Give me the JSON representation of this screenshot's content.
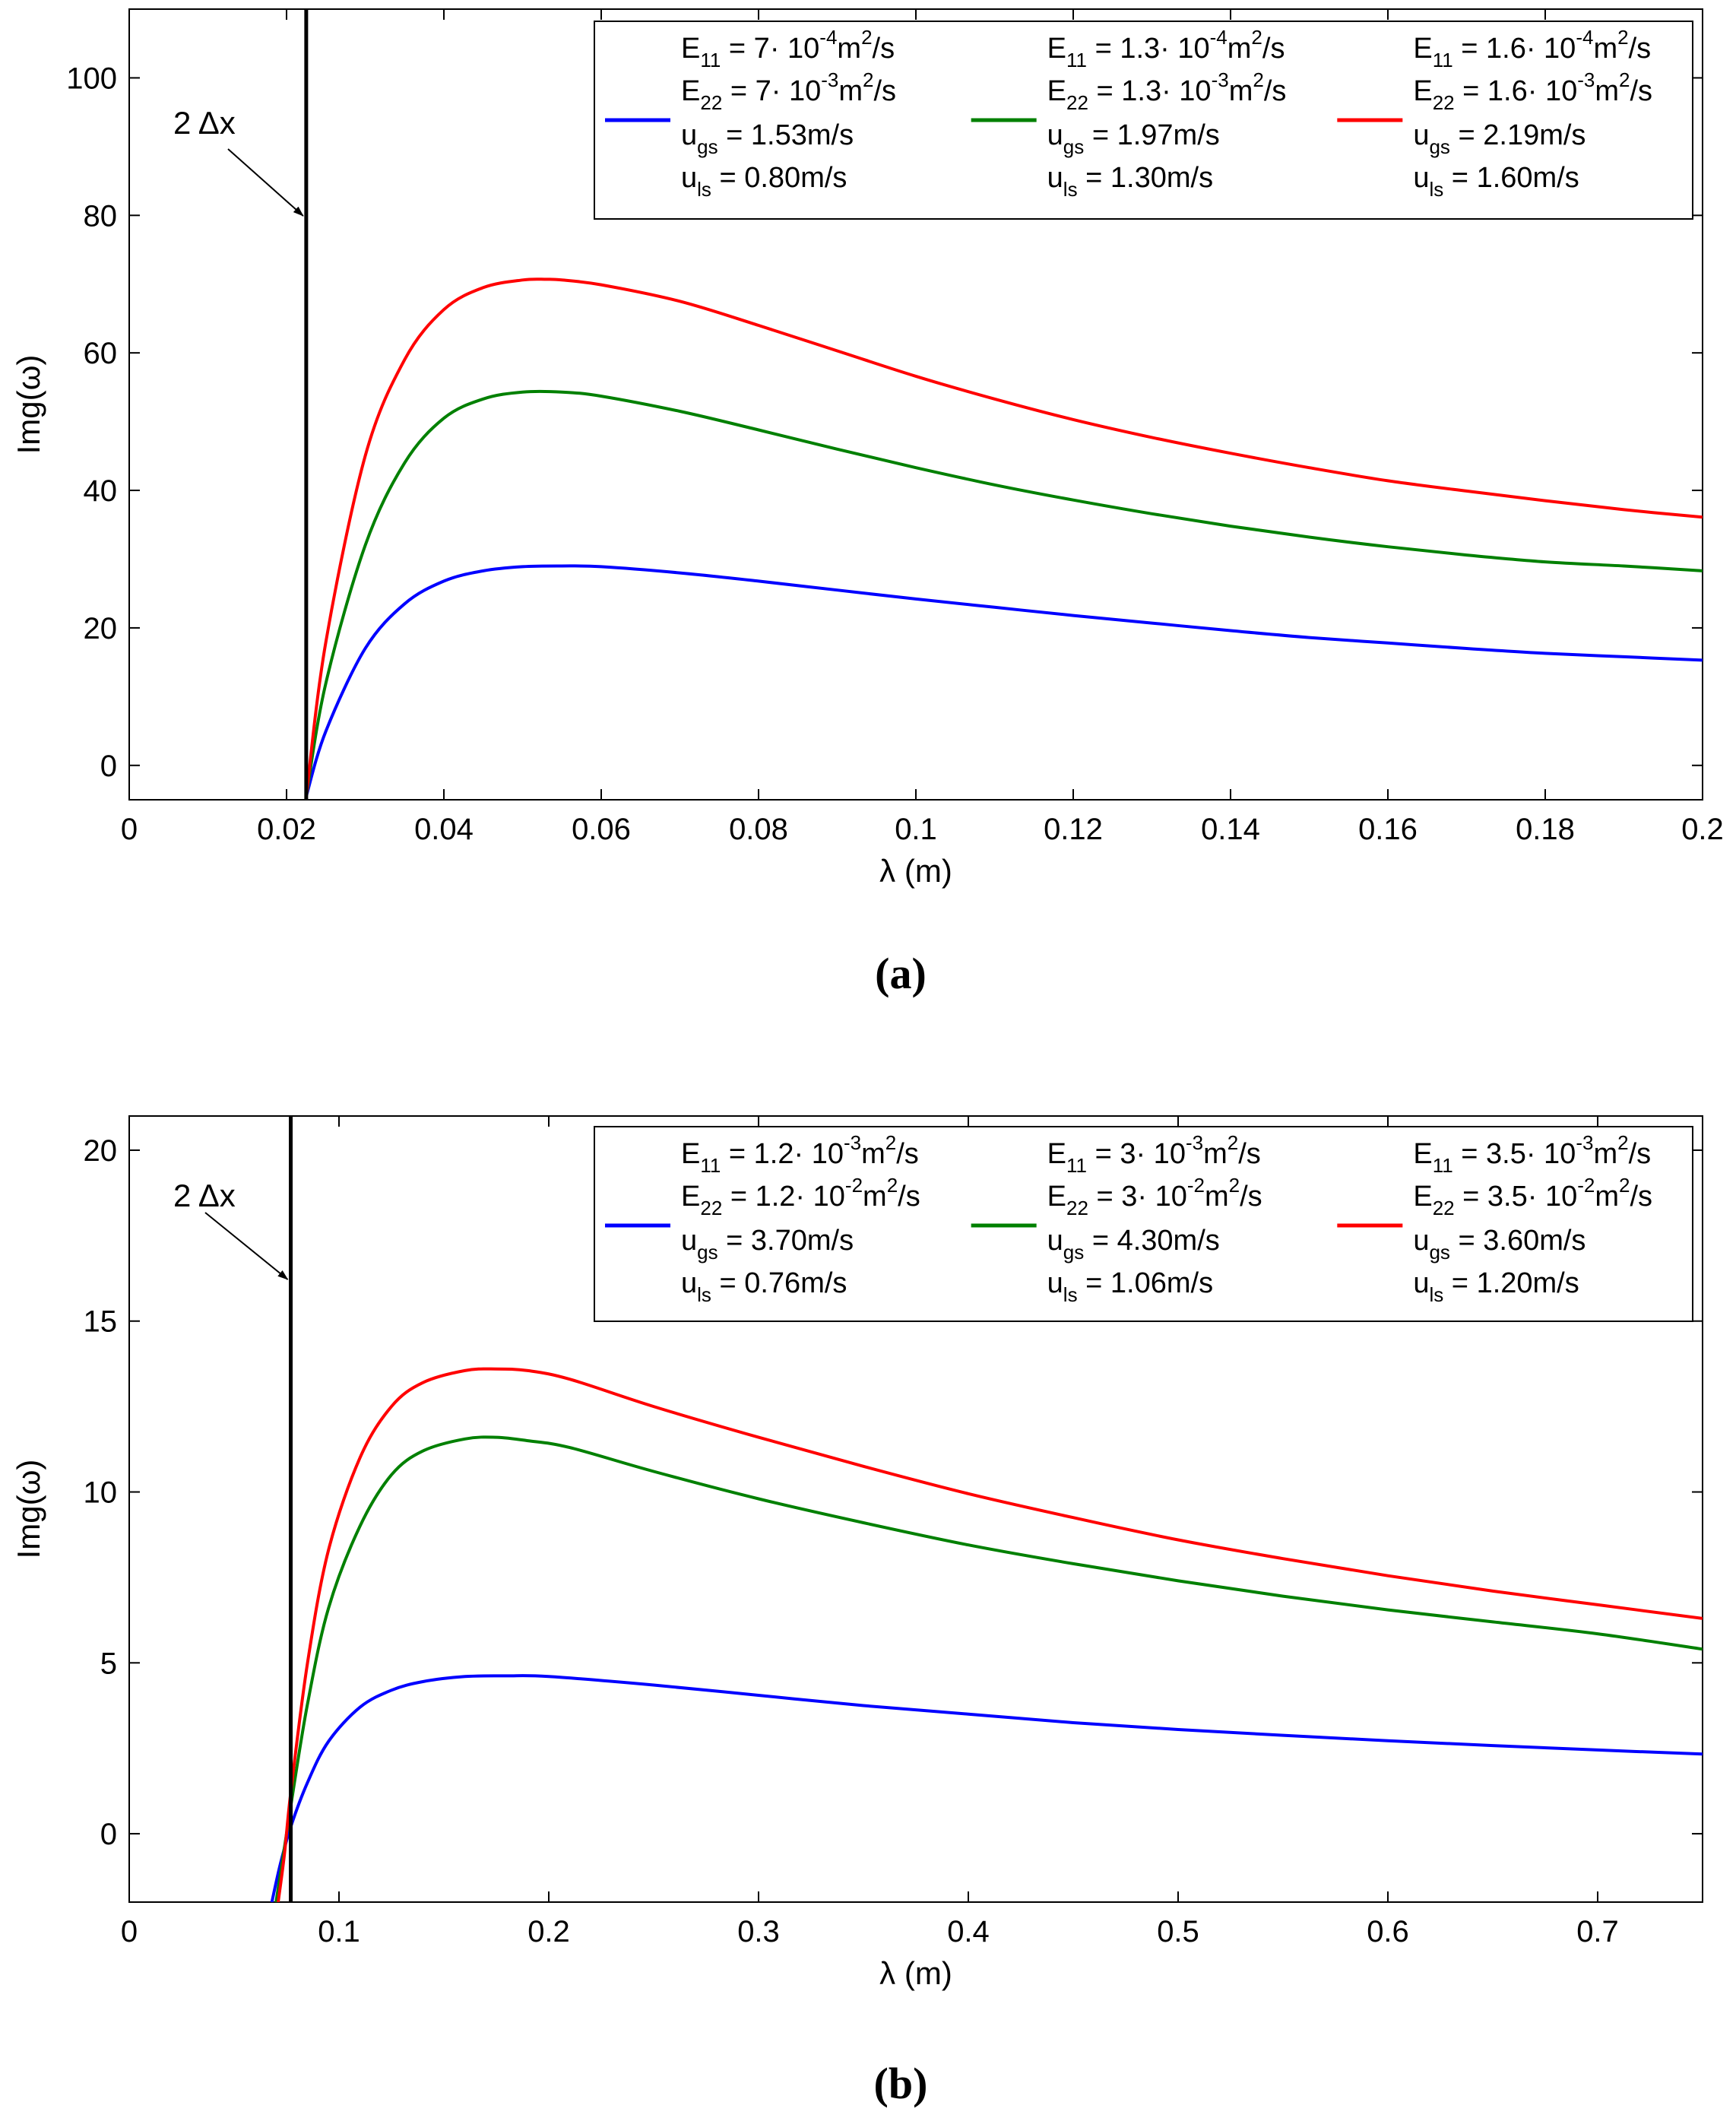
{
  "chart_data": [
    {
      "type": "line",
      "panel": "a",
      "panel_label": "(a)",
      "title": "",
      "xlabel": "λ  (m)",
      "ylabel": "Img(ω)",
      "xlim": [
        0,
        0.2
      ],
      "ylim": [
        -5,
        110
      ],
      "xticks": [
        "0",
        "0.02",
        "0.04",
        "0.06",
        "0.08",
        "0.1",
        "0.12",
        "0.14",
        "0.16",
        "0.18",
        "0.2"
      ],
      "yticks": [
        "0",
        "20",
        "40",
        "60",
        "80",
        "100"
      ],
      "grid": false,
      "legend_position": "top-right",
      "vline": {
        "x": 0.0225,
        "label": "2 Δx"
      },
      "series": [
        {
          "name": "E11 = 7·10^-4, E22 = 7·10^-3, ugs = 1.53, uls = 0.80",
          "color": "#0000ff",
          "legend": {
            "e11_coef": "7",
            "e11_exp": "-4",
            "e22_coef": "7",
            "e22_exp": "-3",
            "ugs": "1.53",
            "uls": "0.80"
          },
          "x": [
            0.0225,
            0.025,
            0.03,
            0.035,
            0.04,
            0.045,
            0.05,
            0.055,
            0.06,
            0.07,
            0.08,
            0.09,
            0.1,
            0.11,
            0.12,
            0.13,
            0.14,
            0.15,
            0.16,
            0.17,
            0.18,
            0.19,
            0.2
          ],
          "y": [
            -4.5,
            5,
            17,
            23.5,
            26.8,
            28.3,
            28.9,
            29.0,
            28.9,
            28.0,
            26.8,
            25.5,
            24.2,
            23.0,
            21.8,
            20.7,
            19.6,
            18.6,
            17.8,
            17.0,
            16.3,
            15.8,
            15.3
          ]
        },
        {
          "name": "E11 = 1.3·10^-4, E22 = 1.3·10^-3, ugs = 1.97, uls = 1.30",
          "color": "#008000",
          "legend": {
            "e11_coef": "1.3",
            "e11_exp": "-4",
            "e22_coef": "1.3",
            "e22_exp": "-3",
            "ugs": "1.97",
            "uls": "1.30"
          },
          "x": [
            0.0225,
            0.025,
            0.03,
            0.035,
            0.04,
            0.045,
            0.05,
            0.055,
            0.06,
            0.07,
            0.08,
            0.09,
            0.1,
            0.11,
            0.12,
            0.13,
            0.14,
            0.15,
            0.16,
            0.17,
            0.18,
            0.19,
            0.2
          ],
          "y": [
            -4.5,
            12,
            32,
            44,
            50.5,
            53.3,
            54.3,
            54.3,
            53.7,
            51.5,
            48.8,
            46.0,
            43.3,
            40.8,
            38.6,
            36.6,
            34.8,
            33.2,
            31.8,
            30.6,
            29.6,
            29.0,
            28.3
          ]
        },
        {
          "name": "E11 = 1.6·10^-4, E22 = 1.6·10^-3, ugs = 2.19, uls = 1.60",
          "color": "#ff0000",
          "legend": {
            "e11_coef": "1.6",
            "e11_exp": "-4",
            "e22_coef": "1.6",
            "e22_exp": "-3",
            "ugs": "2.19",
            "uls": "1.60"
          },
          "x": [
            0.0225,
            0.025,
            0.03,
            0.035,
            0.04,
            0.045,
            0.05,
            0.053,
            0.055,
            0.06,
            0.07,
            0.08,
            0.09,
            0.1,
            0.11,
            0.12,
            0.13,
            0.14,
            0.15,
            0.16,
            0.17,
            0.18,
            0.19,
            0.2
          ],
          "y": [
            -4.5,
            18,
            45,
            59,
            66.3,
            69.5,
            70.6,
            70.7,
            70.6,
            69.9,
            67.5,
            64.0,
            60.3,
            56.6,
            53.3,
            50.3,
            47.7,
            45.4,
            43.3,
            41.4,
            39.9,
            38.5,
            37.2,
            36.1
          ]
        }
      ]
    },
    {
      "type": "line",
      "panel": "b",
      "panel_label": "(b)",
      "title": "",
      "xlabel": "λ  (m)",
      "ylabel": "Img(ω)",
      "xlim": [
        0,
        0.75
      ],
      "ylim": [
        -2,
        21
      ],
      "xticks": [
        "0",
        "0.1",
        "0.2",
        "0.3",
        "0.4",
        "0.5",
        "0.6",
        "0.7"
      ],
      "yticks": [
        "0",
        "5",
        "10",
        "15",
        "20"
      ],
      "grid": false,
      "legend_position": "top-right",
      "vline": {
        "x": 0.077,
        "label": "2 Δx"
      },
      "series": [
        {
          "name": "E11 = 1.2·10^-3, E22 = 1.2·10^-2, ugs = 3.70, uls = 0.76",
          "color": "#0000ff",
          "legend": {
            "e11_coef": "1.2",
            "e11_exp": "-3",
            "e22_coef": "1.2",
            "e22_exp": "-2",
            "ugs": "3.70",
            "uls": "0.76"
          },
          "x": [
            0.068,
            0.072,
            0.077,
            0.085,
            0.095,
            0.11,
            0.125,
            0.14,
            0.16,
            0.18,
            0.2,
            0.25,
            0.3,
            0.35,
            0.4,
            0.45,
            0.5,
            0.55,
            0.6,
            0.65,
            0.7,
            0.75
          ],
          "y": [
            -2,
            -0.9,
            0.2,
            1.5,
            2.7,
            3.7,
            4.2,
            4.45,
            4.6,
            4.62,
            4.6,
            4.35,
            4.05,
            3.75,
            3.5,
            3.25,
            3.05,
            2.88,
            2.72,
            2.58,
            2.45,
            2.33
          ]
        },
        {
          "name": "E11 = 3·10^-3, E22 = 3·10^-2, ugs = 4.30, uls = 1.06",
          "color": "#008000",
          "legend": {
            "e11_coef": "3",
            "e11_exp": "-3",
            "e22_coef": "3",
            "e22_exp": "-2",
            "ugs": "4.30",
            "uls": "1.06"
          },
          "x": [
            0.07,
            0.073,
            0.077,
            0.085,
            0.095,
            0.11,
            0.125,
            0.14,
            0.16,
            0.175,
            0.19,
            0.21,
            0.25,
            0.3,
            0.35,
            0.4,
            0.45,
            0.5,
            0.55,
            0.6,
            0.65,
            0.7,
            0.75
          ],
          "y": [
            -2,
            -0.8,
            0.8,
            3.8,
            6.6,
            9.0,
            10.5,
            11.2,
            11.55,
            11.6,
            11.5,
            11.3,
            10.6,
            9.8,
            9.1,
            8.45,
            7.9,
            7.4,
            6.95,
            6.55,
            6.2,
            5.85,
            5.4
          ]
        },
        {
          "name": "E11 = 3.5·10^-3, E22 = 3.5·10^-2, ugs = 3.60, uls = 1.20",
          "color": "#ff0000",
          "legend": {
            "e11_coef": "3.5",
            "e11_exp": "-3",
            "e22_coef": "3.5",
            "e22_exp": "-2",
            "ugs": "3.60",
            "uls": "1.20"
          },
          "x": [
            0.071,
            0.074,
            0.077,
            0.085,
            0.095,
            0.11,
            0.125,
            0.14,
            0.16,
            0.175,
            0.19,
            0.21,
            0.25,
            0.3,
            0.35,
            0.4,
            0.45,
            0.5,
            0.55,
            0.6,
            0.65,
            0.7,
            0.75
          ],
          "y": [
            -2,
            -0.6,
            1.2,
            5.0,
            8.3,
            11.0,
            12.5,
            13.2,
            13.55,
            13.6,
            13.55,
            13.3,
            12.5,
            11.6,
            10.75,
            9.95,
            9.25,
            8.6,
            8.05,
            7.55,
            7.1,
            6.7,
            6.3
          ]
        }
      ]
    }
  ],
  "legend_text": {
    "unit_m2s": "m",
    "unit_m2s_suffix": "/s",
    "unit_ms": "m/s",
    "e_label": "E",
    "u_label": "u",
    "sub_11": "11",
    "sub_22": "22",
    "sub_gs": "gs",
    "sub_ls": "ls",
    "times_ten": "· 10",
    "sq": "2"
  }
}
